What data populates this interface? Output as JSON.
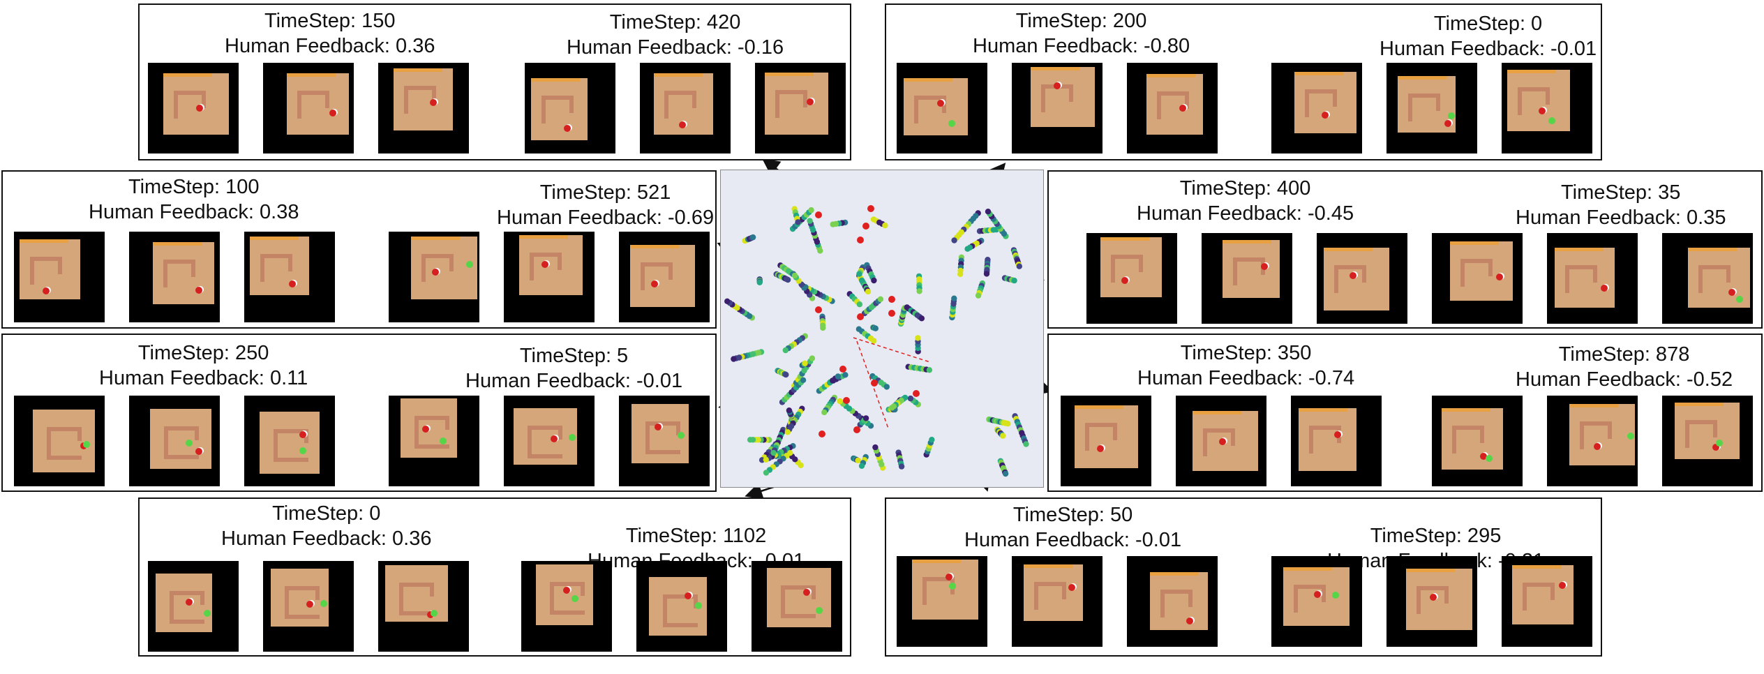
{
  "panels": [
    {
      "id": "p1",
      "items": [
        {
          "timestep": "TimeStep: 150",
          "feedback": "Human Feedback: 0.36"
        },
        {
          "timestep": "TimeStep: 420",
          "feedback": "Human Feedback: -0.16"
        }
      ]
    },
    {
      "id": "p2",
      "items": [
        {
          "timestep": "TimeStep: 200",
          "feedback": "Human Feedback: -0.80"
        },
        {
          "timestep": "TimeStep: 0",
          "feedback": "Human Feedback: -0.01"
        }
      ]
    },
    {
      "id": "p3",
      "items": [
        {
          "timestep": "TimeStep: 100",
          "feedback": "Human Feedback: 0.38"
        },
        {
          "timestep": "TimeStep: 521",
          "feedback": "Human Feedback: -0.69"
        }
      ]
    },
    {
      "id": "p4",
      "items": [
        {
          "timestep": "TimeStep: 400",
          "feedback": "Human Feedback: -0.45"
        },
        {
          "timestep": "TimeStep: 35",
          "feedback": "Human Feedback: 0.35"
        }
      ]
    },
    {
      "id": "p5",
      "items": [
        {
          "timestep": "TimeStep: 250",
          "feedback": "Human Feedback: 0.11"
        },
        {
          "timestep": "TimeStep: 5",
          "feedback": "Human Feedback: -0.01"
        }
      ]
    },
    {
      "id": "p6",
      "items": [
        {
          "timestep": "TimeStep: 350",
          "feedback": "Human Feedback: -0.74"
        },
        {
          "timestep": "TimeStep: 878",
          "feedback": "Human Feedback: -0.52"
        }
      ]
    },
    {
      "id": "p7",
      "items": [
        {
          "timestep": "TimeStep: 0",
          "feedback": "Human Feedback: 0.36"
        },
        {
          "timestep": "TimeStep: 1102",
          "feedback": "Human Feedback: -0.01"
        }
      ]
    },
    {
      "id": "p8",
      "items": [
        {
          "timestep": "TimeStep: 50",
          "feedback": "Human Feedback: -0.01"
        },
        {
          "timestep": "TimeStep: 295",
          "feedback": "Human Feedback: -0.21"
        }
      ]
    }
  ],
  "colors": {
    "floor": "#d4a679",
    "wall": "#e8a040",
    "segment": "#c48466",
    "highlight": "#e02020",
    "scatter_bg": "#e8eaf3",
    "palette": [
      "#3b1f6e",
      "#414487",
      "#2a788e",
      "#22a884",
      "#44bf70",
      "#7ad151",
      "#d8e219"
    ]
  }
}
